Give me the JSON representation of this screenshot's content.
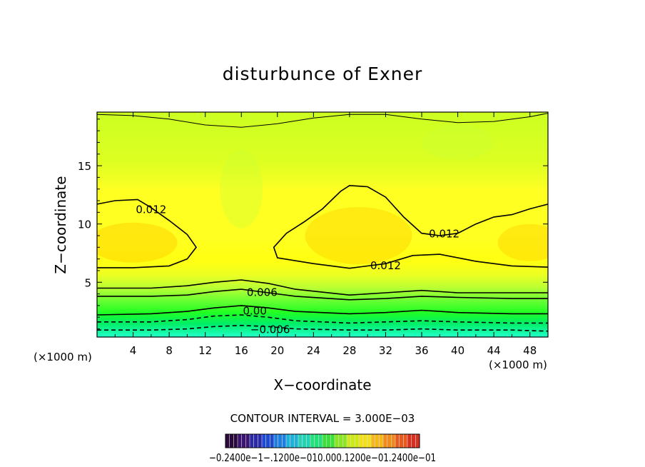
{
  "chart_data": {
    "type": "contour",
    "title": "disturbunce of Exner",
    "xlabel": "X−coordinate",
    "ylabel": "Z−coordinate",
    "x_unit_left": "(×1000 m)",
    "x_unit_right": "(×1000 m)",
    "xlim": [
      0,
      50
    ],
    "ylim": [
      0.3,
      19.6
    ],
    "xticks": [
      4,
      8,
      12,
      16,
      20,
      24,
      28,
      32,
      36,
      40,
      44,
      48
    ],
    "yticks": [
      5,
      10,
      15
    ],
    "contour_interval_text": "CONTOUR INTERVAL = 3.000E−03",
    "contour_labels": [
      {
        "text": "0.012",
        "x": 6.0,
        "z": 11.3
      },
      {
        "text": "0.012",
        "x": 38.5,
        "z": 9.2
      },
      {
        "text": "0.012",
        "x": 32.0,
        "z": 6.5
      },
      {
        "text": "0.006",
        "x": 18.3,
        "z": 4.2
      },
      {
        "text": "0.00",
        "x": 17.5,
        "z": 2.6
      },
      {
        "text": "−0.006",
        "x": 19.2,
        "z": 1.0
      }
    ],
    "contour_lines": [
      {
        "level": 0.012,
        "style": "solid",
        "points": [
          [
            0,
            11.7
          ],
          [
            2,
            12.0
          ],
          [
            4.5,
            12.1
          ],
          [
            6,
            11.4
          ],
          [
            8,
            10.3
          ],
          [
            10,
            9.1
          ],
          [
            11,
            8.0
          ],
          [
            10,
            7.0
          ],
          [
            8,
            6.4
          ],
          [
            4,
            6.25
          ],
          [
            0,
            6.25
          ]
        ]
      },
      {
        "level": 0.012,
        "style": "solid",
        "points": [
          [
            50,
            6.3
          ],
          [
            46,
            6.4
          ],
          [
            42,
            6.8
          ],
          [
            38,
            7.4
          ],
          [
            35,
            7.3
          ],
          [
            32,
            6.6
          ],
          [
            28,
            6.2
          ],
          [
            24,
            6.6
          ],
          [
            20,
            7.1
          ],
          [
            19.6,
            8.0
          ],
          [
            21,
            9.2
          ],
          [
            23,
            10.2
          ],
          [
            25,
            11.3
          ],
          [
            27,
            12.8
          ],
          [
            28,
            13.3
          ],
          [
            30,
            13.2
          ],
          [
            32,
            12.3
          ],
          [
            34,
            10.6
          ],
          [
            36,
            9.2
          ],
          [
            38,
            9.0
          ],
          [
            40,
            9.2
          ],
          [
            42,
            10.0
          ],
          [
            44,
            10.6
          ],
          [
            46,
            10.8
          ],
          [
            48,
            11.3
          ],
          [
            50,
            11.7
          ]
        ]
      },
      {
        "level": 0.009,
        "style": "solid",
        "points": [
          [
            0,
            19.4
          ],
          [
            4,
            19.3
          ],
          [
            8,
            19.0
          ],
          [
            12,
            18.5
          ],
          [
            16,
            18.3
          ],
          [
            20,
            18.6
          ],
          [
            24,
            19.1
          ],
          [
            28,
            19.4
          ],
          [
            32,
            19.4
          ],
          [
            36,
            19.0
          ],
          [
            40,
            18.7
          ],
          [
            44,
            18.8
          ],
          [
            48,
            19.2
          ],
          [
            50,
            19.5
          ]
        ]
      },
      {
        "level": 0.006,
        "style": "solid",
        "points": [
          [
            0,
            4.5
          ],
          [
            6,
            4.5
          ],
          [
            10,
            4.7
          ],
          [
            13,
            5.0
          ],
          [
            16,
            5.2
          ],
          [
            19,
            4.9
          ],
          [
            22,
            4.4
          ],
          [
            28,
            3.9
          ],
          [
            32,
            4.1
          ],
          [
            36,
            4.3
          ],
          [
            40,
            4.1
          ],
          [
            46,
            4.1
          ],
          [
            50,
            4.1
          ]
        ]
      },
      {
        "level": 0.003,
        "style": "solid",
        "points": [
          [
            0,
            3.8
          ],
          [
            6,
            3.8
          ],
          [
            10,
            3.9
          ],
          [
            13,
            4.2
          ],
          [
            16,
            4.4
          ],
          [
            19,
            4.1
          ],
          [
            22,
            3.8
          ],
          [
            28,
            3.5
          ],
          [
            32,
            3.6
          ],
          [
            36,
            3.8
          ],
          [
            40,
            3.7
          ],
          [
            46,
            3.6
          ],
          [
            50,
            3.6
          ]
        ]
      },
      {
        "level": 0.0,
        "style": "solid",
        "points": [
          [
            0,
            2.2
          ],
          [
            6,
            2.3
          ],
          [
            10,
            2.5
          ],
          [
            13,
            2.8
          ],
          [
            16,
            3.0
          ],
          [
            19,
            2.8
          ],
          [
            22,
            2.5
          ],
          [
            28,
            2.3
          ],
          [
            32,
            2.4
          ],
          [
            36,
            2.6
          ],
          [
            40,
            2.4
          ],
          [
            46,
            2.3
          ],
          [
            50,
            2.3
          ]
        ]
      },
      {
        "level": -0.003,
        "style": "dashed",
        "points": [
          [
            0,
            1.6
          ],
          [
            6,
            1.6
          ],
          [
            10,
            1.8
          ],
          [
            13,
            2.1
          ],
          [
            16,
            2.2
          ],
          [
            19,
            2.0
          ],
          [
            22,
            1.7
          ],
          [
            28,
            1.5
          ],
          [
            32,
            1.6
          ],
          [
            36,
            1.7
          ],
          [
            40,
            1.6
          ],
          [
            46,
            1.5
          ],
          [
            50,
            1.5
          ]
        ]
      },
      {
        "level": -0.006,
        "style": "dashed",
        "points": [
          [
            0,
            0.9
          ],
          [
            6,
            0.9
          ],
          [
            10,
            1.0
          ],
          [
            13,
            1.2
          ],
          [
            16,
            1.3
          ],
          [
            19,
            1.2
          ],
          [
            22,
            1.0
          ],
          [
            28,
            0.9
          ],
          [
            32,
            0.9
          ],
          [
            36,
            1.0
          ],
          [
            40,
            0.9
          ],
          [
            46,
            0.9
          ],
          [
            50,
            0.8
          ]
        ]
      }
    ],
    "colorbar": {
      "tick_label_text": "−0.2400e−1−.1200e−010.000.1200e−01.2400e−01",
      "colors": [
        "#2a0a3a",
        "#3a1470",
        "#2a2aa8",
        "#1d4ad0",
        "#1f7fe0",
        "#1fb2d8",
        "#22d4b4",
        "#22e07a",
        "#3be03a",
        "#8ae622",
        "#cdea16",
        "#f2e018",
        "#f6b818",
        "#f08a1a",
        "#e85a1e",
        "#d83020"
      ]
    },
    "fill_colors": {
      "high": "#ffd500",
      "mid": "#ffff22",
      "top": "#ccff33",
      "band_light": "#99ff33",
      "band_green": "#22ff22",
      "band_teal": "#00ee99",
      "band_cyan": "#22ffcc"
    }
  }
}
